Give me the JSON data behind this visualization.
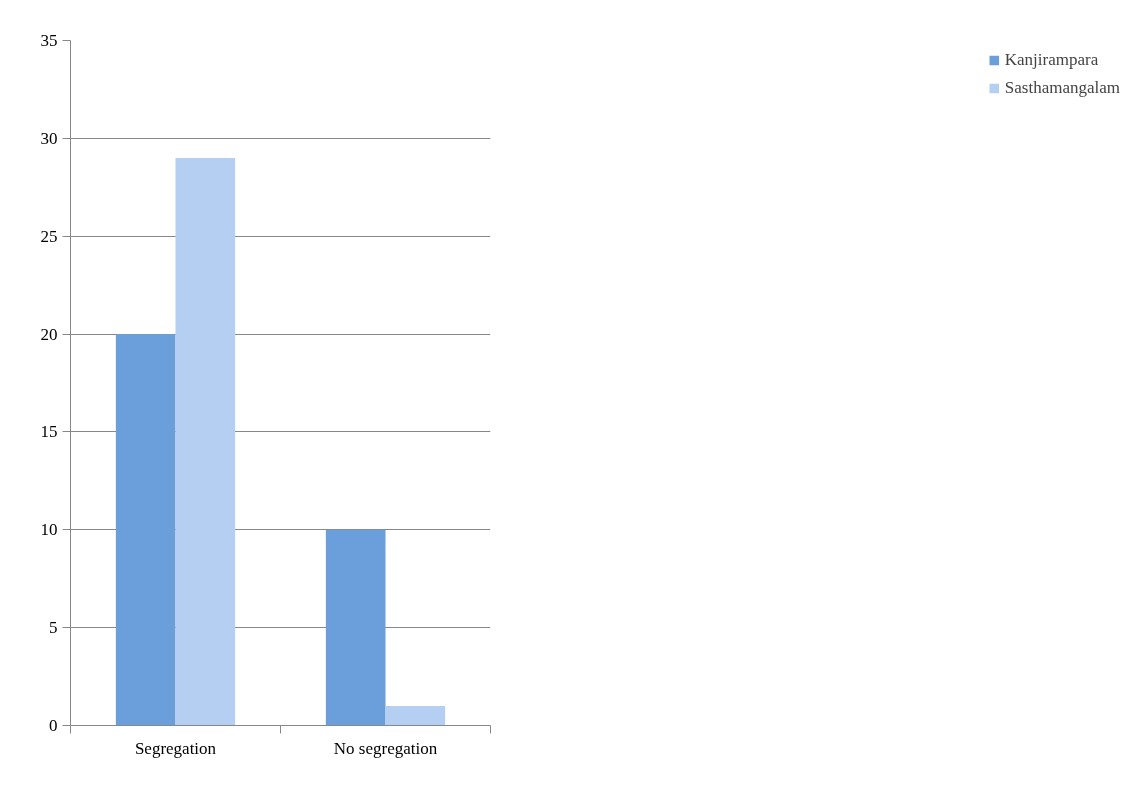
{
  "chart_data": {
    "type": "bar",
    "categories": [
      "Segregation",
      "No segregation"
    ],
    "series": [
      {
        "name": "Kanjirampara",
        "color": "#6b9fdc",
        "values": [
          20,
          10
        ]
      },
      {
        "name": "Sasthamangalam",
        "color": "#b4cff2",
        "values": [
          29,
          1
        ]
      }
    ],
    "ylim": [
      0,
      35
    ],
    "yticks": [
      0,
      5,
      10,
      15,
      20,
      25,
      30,
      35
    ],
    "grid": "y",
    "legend": "right"
  }
}
